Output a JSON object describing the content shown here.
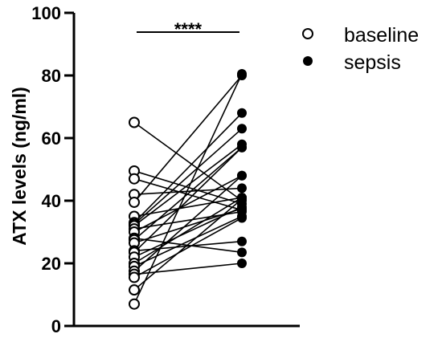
{
  "chart_data": {
    "type": "scatter",
    "title": "",
    "ylabel": "ATX levels (ng/ml)",
    "xlabel": "",
    "ylim": [
      0,
      100
    ],
    "yticks": [
      0,
      20,
      40,
      60,
      80,
      100
    ],
    "grid": false,
    "legend_position": "top-right",
    "significance": "****",
    "series": [
      {
        "name": "baseline",
        "marker": "open-circle",
        "values": [
          65,
          49.5,
          47,
          42,
          39.5,
          35,
          33,
          32.5,
          32,
          31,
          30,
          28,
          27.5,
          26.5,
          24,
          23.5,
          22,
          20,
          19,
          17.5,
          16.5,
          15.5,
          11.5,
          7
        ]
      },
      {
        "name": "sepsis",
        "marker": "filled-circle",
        "values": [
          40,
          39,
          37,
          44,
          80,
          41,
          68,
          63,
          58,
          36.5,
          48,
          23.5,
          57,
          37.5,
          27,
          57,
          38,
          41,
          35,
          48,
          20,
          34.5,
          40.5,
          80.5
        ]
      }
    ],
    "paired": true
  }
}
